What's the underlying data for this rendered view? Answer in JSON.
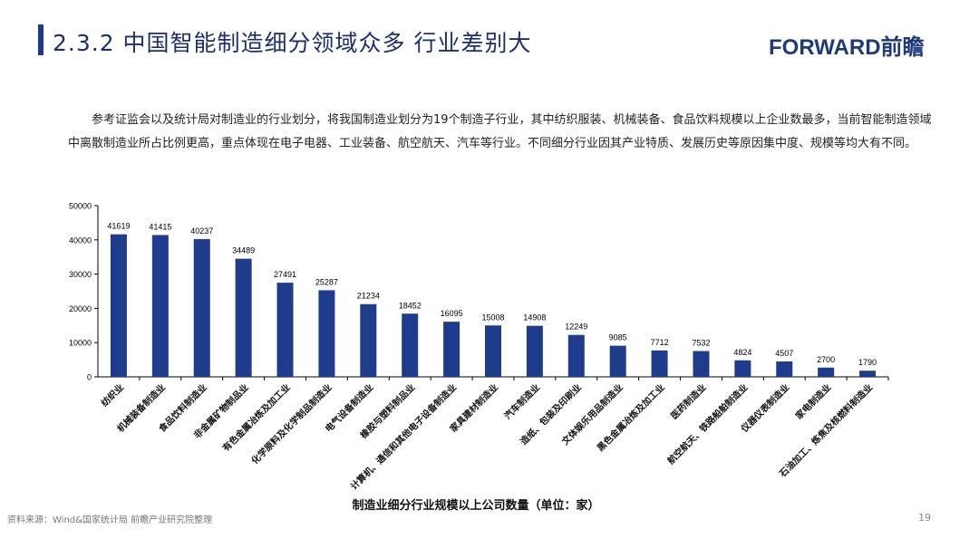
{
  "header": {
    "title": "2.3.2 中国智能制造细分领域众多 行业差别大",
    "logo": "FORWARD前瞻"
  },
  "intro": "参考证监会以及统计局对制造业的行业划分，将我国制造业划分为19个制造子行业，其中纺织服装、机械装备、食品饮料规模以上企业数最多，当前智能制造领域中离散制造业所占比例更高，重点体现在电子电器、工业装备、航空航天、汽车等行业。不同细分行业因其产业特质、发展历史等原因集中度、规模等均大有不同。",
  "footer": {
    "source": "资料来源：Wind&国家统计局 前瞻产业研究院整理",
    "page": "19"
  },
  "chart_data": {
    "type": "bar",
    "title": "",
    "xlabel": "制造业细分行业规模以上公司数量（单位：家）",
    "ylabel": "",
    "ylim": [
      0,
      50000
    ],
    "yticks": [
      "0",
      "10000",
      "20000",
      "30000",
      "40000",
      "50000"
    ],
    "grid": false,
    "bar_color": "#1f3b8c",
    "categories": [
      "纺织业",
      "机械装备制造业",
      "食品饮料制造业",
      "非金属矿物制品业",
      "有色金属冶炼及加工业",
      "化学原料及化学制品制造业",
      "电气设备制造业",
      "橡胶与塑料制品业",
      "计算机、通信和其他电子设备制造业",
      "家具建材制造业",
      "汽车制造业",
      "造纸、包装及印刷业",
      "文体娱乐用品制造业",
      "黑色金属冶炼及加工业",
      "医药制造业",
      "航空航天、铁路船舶制造业",
      "仪器仪表制造业",
      "家电制造业",
      "石油加工、炼焦及核燃料制造业"
    ],
    "values": [
      41619,
      41415,
      40237,
      34489,
      27491,
      25287,
      21234,
      18452,
      16095,
      15008,
      14908,
      12249,
      9085,
      7712,
      7532,
      4824,
      4507,
      2700,
      1790
    ]
  }
}
